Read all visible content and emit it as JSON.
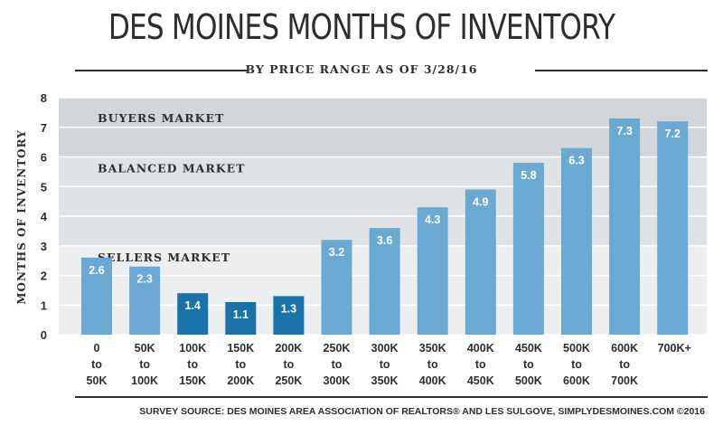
{
  "header": {
    "title": "DES MOINES MONTHS OF INVENTORY",
    "subtitle": "BY PRICE RANGE AS OF 3/28/16"
  },
  "footer": {
    "source": "SURVEY SOURCE: DES MOINES AREA ASSOCIATION OF REALTORS® AND LES SULGOVE, SIMPLYDESMOINES.COM ©2016"
  },
  "chart_data": {
    "type": "bar",
    "title": "DES MOINES MONTHS OF INVENTORY",
    "subtitle": "BY PRICE RANGE AS OF 3/28/16",
    "xlabel": "",
    "ylabel": "MONTHS OF INVENTORY",
    "ylim": [
      0,
      8
    ],
    "yticks": [
      0,
      1,
      2,
      3,
      4,
      5,
      6,
      7,
      8
    ],
    "grid": true,
    "categories": [
      [
        "0",
        "to",
        "50K"
      ],
      [
        "50K",
        "to",
        "100K"
      ],
      [
        "100K",
        "to",
        "150K"
      ],
      [
        "150K",
        "to",
        "200K"
      ],
      [
        "200K",
        "to",
        "250K"
      ],
      [
        "250K",
        "to",
        "300K"
      ],
      [
        "300K",
        "to",
        "350K"
      ],
      [
        "350K",
        "to",
        "400K"
      ],
      [
        "400K",
        "to",
        "450K"
      ],
      [
        "450K",
        "to",
        "500K"
      ],
      [
        "500K",
        "to",
        "600K"
      ],
      [
        "600K",
        "to",
        "700K"
      ],
      [
        "700K+"
      ]
    ],
    "values": [
      2.6,
      2.3,
      1.4,
      1.1,
      1.3,
      3.2,
      3.6,
      4.3,
      4.9,
      5.8,
      6.3,
      7.3,
      7.2
    ],
    "data_labels": [
      "2.6",
      "2.3",
      "1.4",
      "1.1",
      "1.3",
      "3.2",
      "3.6",
      "4.3",
      "4.9",
      "5.8",
      "6.3",
      "7.3",
      "7.2"
    ],
    "highlighted": [
      false,
      false,
      true,
      true,
      true,
      false,
      false,
      false,
      false,
      false,
      false,
      false,
      false
    ],
    "bands": [
      {
        "label": "SELLERS MARKET",
        "from": 0,
        "to": 3,
        "color": "#eceef0"
      },
      {
        "label": "BALANCED MARKET",
        "from": 3,
        "to": 6,
        "color": "#e0e3e6"
      },
      {
        "label": "BUYERS MARKET",
        "from": 6,
        "to": 8,
        "color": "#d2d6da"
      }
    ],
    "colors": {
      "bar": "#6aa9d1",
      "bar_highlight": "#1a73a8",
      "grid": "#ffffff",
      "text": "#2e2e2e"
    }
  }
}
